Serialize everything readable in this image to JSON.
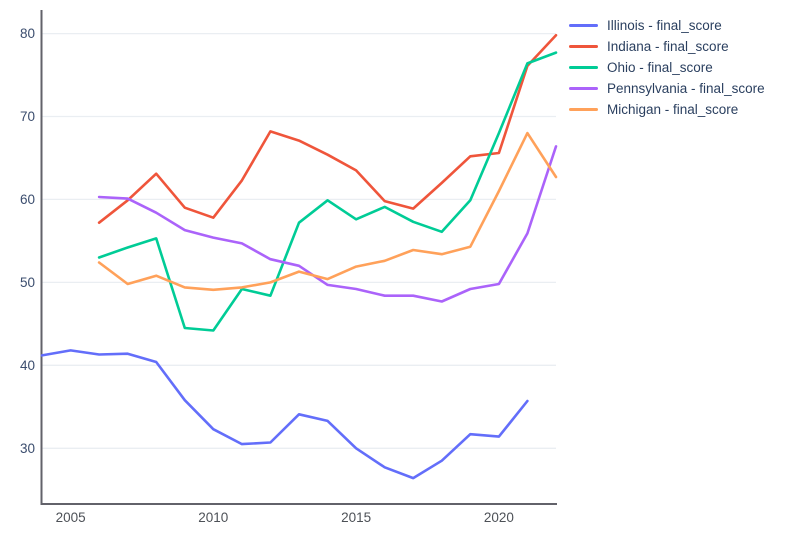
{
  "chart_data": {
    "type": "line",
    "title": "",
    "xlabel": "",
    "ylabel": "",
    "x": [
      2004,
      2005,
      2006,
      2007,
      2008,
      2009,
      2010,
      2011,
      2012,
      2013,
      2014,
      2015,
      2016,
      2017,
      2018,
      2019,
      2020,
      2021,
      2022
    ],
    "xticks": [
      "2005",
      "2010",
      "2015",
      "2020"
    ],
    "xtick_values": [
      2005,
      2010,
      2015,
      2020
    ],
    "yticks": [
      "30",
      "40",
      "50",
      "60",
      "70",
      "80"
    ],
    "ytick_values": [
      30,
      40,
      50,
      60,
      70,
      80
    ],
    "xlim": [
      2004,
      2022
    ],
    "ylim": [
      23.4,
      82.6
    ],
    "grid": "horizontal",
    "legend_position": "top-right",
    "series": [
      {
        "name": "Illinois - final_score",
        "color": "#636EFA",
        "values": [
          41.2,
          41.8,
          41.3,
          41.4,
          40.4,
          35.8,
          32.3,
          30.5,
          30.7,
          34.1,
          33.3,
          30.0,
          27.7,
          26.4,
          28.5,
          31.7,
          31.4,
          35.7,
          null
        ]
      },
      {
        "name": "Indiana - final_score",
        "color": "#EF553B",
        "values": [
          null,
          null,
          57.2,
          59.9,
          63.1,
          59.0,
          57.8,
          62.3,
          68.2,
          67.1,
          65.4,
          63.5,
          59.8,
          58.9,
          62.0,
          65.2,
          65.6,
          76.1,
          79.8
        ]
      },
      {
        "name": "Ohio - final_score",
        "color": "#00CC96",
        "values": [
          null,
          null,
          53.0,
          54.2,
          55.3,
          44.5,
          44.2,
          49.2,
          48.4,
          57.2,
          59.9,
          57.6,
          59.1,
          57.3,
          56.1,
          59.9,
          68.0,
          76.4,
          77.7
        ]
      },
      {
        "name": "Pennsylvania - final_score",
        "color": "#AB63FA",
        "values": [
          null,
          null,
          60.3,
          60.1,
          58.4,
          56.3,
          55.4,
          54.7,
          52.8,
          52.0,
          49.7,
          49.2,
          48.4,
          48.4,
          47.7,
          49.2,
          49.8,
          55.9,
          66.4
        ]
      },
      {
        "name": "Michigan - final_score",
        "color": "#FFA15A",
        "values": [
          null,
          null,
          52.4,
          49.8,
          50.8,
          49.4,
          49.1,
          49.4,
          50.0,
          51.3,
          50.4,
          51.9,
          52.6,
          53.9,
          53.4,
          54.3,
          61.0,
          68.0,
          62.7
        ]
      }
    ],
    "colors": {
      "y_tick_text": "#3b4d6e",
      "x_tick_text": "#4d5157",
      "gridline": "#eaeef2",
      "axis_line": "#62626a",
      "legend_text": "#2a3f5f",
      "background": "#ffffff"
    }
  }
}
